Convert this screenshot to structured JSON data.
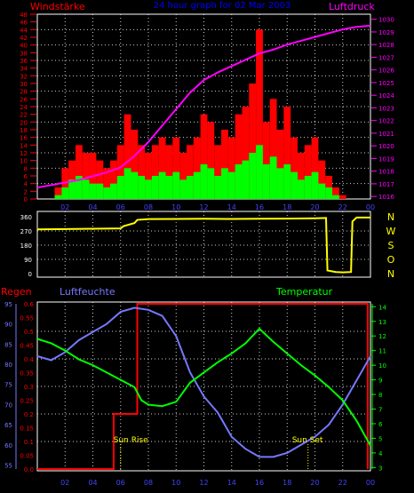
{
  "header": {
    "left_label": "Windstärke",
    "center_label": "24 hour graph for 02 Mar 2003",
    "right_label": "Luftdruck"
  },
  "bottom_header": {
    "regen_label": "Regen",
    "luftfeuchte_label": "Luftfeuchte",
    "temperatur_label": "Temperatur"
  },
  "annotations": {
    "sun_rise": "Sun Rise",
    "sun_set": "Sun Set"
  },
  "colors": {
    "wind_gust": "#ff0000",
    "wind_avg": "#00ff00",
    "pressure": "#ff00ff",
    "direction": "#ffff00",
    "rain": "#ff0000",
    "humidity": "#7777ff",
    "temperature": "#00ff00",
    "compass": "#ffff00",
    "frame": "#ffffff"
  },
  "chart_data": [
    {
      "type": "bar",
      "name": "wind_pressure",
      "x_ticks": [
        "02",
        "04",
        "06",
        "08",
        "10",
        "12",
        "14",
        "16",
        "18",
        "20",
        "22",
        "00"
      ],
      "xlim": [
        0,
        24
      ],
      "wind_yticks": [
        0,
        2,
        4,
        6,
        8,
        10,
        12,
        14,
        16,
        18,
        20,
        22,
        24,
        26,
        28,
        30,
        32,
        34,
        36,
        38,
        40,
        42,
        44,
        46,
        48
      ],
      "wind_ylim": [
        0,
        48
      ],
      "pressure_yticks": [
        1016,
        1017,
        1018,
        1019,
        1020,
        1021,
        1022,
        1023,
        1024,
        1025,
        1026,
        1027,
        1028,
        1029,
        1030
      ],
      "pressure_ylim": [
        1015.8,
        1030.4
      ],
      "wind_gust_series": [
        [
          1.5,
          3
        ],
        [
          2,
          8
        ],
        [
          2.5,
          10
        ],
        [
          3,
          14
        ],
        [
          3.5,
          12
        ],
        [
          4,
          12
        ],
        [
          4.5,
          10
        ],
        [
          5,
          8
        ],
        [
          5.5,
          10
        ],
        [
          6,
          14
        ],
        [
          6.5,
          22
        ],
        [
          7,
          18
        ],
        [
          7.5,
          14
        ],
        [
          8,
          12
        ],
        [
          8.5,
          14
        ],
        [
          9,
          16
        ],
        [
          9.5,
          14
        ],
        [
          10,
          16
        ],
        [
          10.5,
          12
        ],
        [
          11,
          14
        ],
        [
          11.5,
          16
        ],
        [
          12,
          22
        ],
        [
          12.5,
          20
        ],
        [
          13,
          14
        ],
        [
          13.5,
          18
        ],
        [
          14,
          16
        ],
        [
          14.5,
          22
        ],
        [
          15,
          24
        ],
        [
          15.5,
          30
        ],
        [
          16,
          44
        ],
        [
          16.5,
          20
        ],
        [
          17,
          26
        ],
        [
          17.5,
          18
        ],
        [
          18,
          24
        ],
        [
          18.5,
          16
        ],
        [
          19,
          12
        ],
        [
          19.5,
          14
        ],
        [
          20,
          16
        ],
        [
          20.5,
          10
        ],
        [
          21,
          6
        ],
        [
          21.5,
          3
        ],
        [
          22,
          1
        ]
      ],
      "wind_avg_series": [
        [
          1.5,
          1
        ],
        [
          2,
          3
        ],
        [
          2.5,
          5
        ],
        [
          3,
          6
        ],
        [
          3.5,
          5
        ],
        [
          4,
          4
        ],
        [
          4.5,
          4
        ],
        [
          5,
          3
        ],
        [
          5.5,
          4
        ],
        [
          6,
          6
        ],
        [
          6.5,
          8
        ],
        [
          7,
          7
        ],
        [
          7.5,
          6
        ],
        [
          8,
          5
        ],
        [
          8.5,
          6
        ],
        [
          9,
          7
        ],
        [
          9.5,
          6
        ],
        [
          10,
          7
        ],
        [
          10.5,
          5
        ],
        [
          11,
          6
        ],
        [
          11.5,
          7
        ],
        [
          12,
          9
        ],
        [
          12.5,
          8
        ],
        [
          13,
          6
        ],
        [
          13.5,
          8
        ],
        [
          14,
          7
        ],
        [
          14.5,
          9
        ],
        [
          15,
          10
        ],
        [
          15.5,
          12
        ],
        [
          16,
          14
        ],
        [
          16.5,
          9
        ],
        [
          17,
          11
        ],
        [
          17.5,
          8
        ],
        [
          18,
          9
        ],
        [
          18.5,
          7
        ],
        [
          19,
          5
        ],
        [
          19.5,
          6
        ],
        [
          20,
          7
        ],
        [
          20.5,
          4
        ],
        [
          21,
          3
        ],
        [
          21.5,
          1
        ],
        [
          22,
          0
        ]
      ],
      "pressure_series": [
        [
          0,
          1016.7
        ],
        [
          1,
          1016.9
        ],
        [
          2,
          1017.1
        ],
        [
          3,
          1017.3
        ],
        [
          4,
          1017.6
        ],
        [
          5,
          1017.9
        ],
        [
          6,
          1018.3
        ],
        [
          7,
          1019.2
        ],
        [
          8,
          1020.3
        ],
        [
          9,
          1021.6
        ],
        [
          10,
          1022.9
        ],
        [
          11,
          1024.2
        ],
        [
          12,
          1025.2
        ],
        [
          13,
          1025.8
        ],
        [
          14,
          1026.3
        ],
        [
          15,
          1026.8
        ],
        [
          16,
          1027.3
        ],
        [
          17,
          1027.6
        ],
        [
          18,
          1028.0
        ],
        [
          19,
          1028.3
        ],
        [
          20,
          1028.6
        ],
        [
          21,
          1028.9
        ],
        [
          22,
          1029.2
        ],
        [
          23,
          1029.4
        ],
        [
          24,
          1029.5
        ]
      ]
    },
    {
      "type": "line",
      "name": "wind_direction",
      "xlim": [
        0,
        24
      ],
      "yticks": [
        0,
        90,
        180,
        270,
        360
      ],
      "ylim": [
        0,
        360
      ],
      "compass_labels": [
        "N",
        "W",
        "S",
        "O",
        "N"
      ],
      "series": [
        [
          0,
          280
        ],
        [
          2,
          282
        ],
        [
          4,
          284
        ],
        [
          6,
          286
        ],
        [
          6.2,
          300
        ],
        [
          7,
          320
        ],
        [
          7.2,
          340
        ],
        [
          8,
          345
        ],
        [
          10,
          346
        ],
        [
          12,
          347
        ],
        [
          14,
          346
        ],
        [
          16,
          347
        ],
        [
          18,
          348
        ],
        [
          20,
          350
        ],
        [
          20.8,
          352
        ],
        [
          20.9,
          20
        ],
        [
          21.5,
          10
        ],
        [
          22,
          8
        ],
        [
          22.6,
          10
        ],
        [
          22.7,
          330
        ],
        [
          23,
          355
        ],
        [
          24,
          355
        ]
      ]
    },
    {
      "type": "line",
      "name": "rain_humidity_temperature",
      "x_ticks": [
        "02",
        "04",
        "06",
        "08",
        "10",
        "12",
        "14",
        "16",
        "18",
        "20",
        "22",
        "00"
      ],
      "xlim": [
        0,
        24
      ],
      "rain_yticks": [
        0,
        0.05,
        0.1,
        0.15,
        0.2,
        0.25,
        0.3,
        0.35,
        0.4,
        0.45,
        0.5,
        0.55,
        0.6
      ],
      "rain_ylim": [
        0,
        0.6
      ],
      "humidity_yticks": [
        55,
        60,
        65,
        70,
        75,
        80,
        85,
        90,
        95
      ],
      "humidity_ylim": [
        54,
        95
      ],
      "temperature_yticks": [
        3,
        4,
        5,
        6,
        7,
        8,
        9,
        10,
        11,
        12,
        13,
        14
      ],
      "temperature_ylim": [
        2.9,
        14.2
      ],
      "rain_series": [
        [
          0,
          0
        ],
        [
          5.5,
          0
        ],
        [
          5.5,
          0.2
        ],
        [
          7.2,
          0.2
        ],
        [
          7.2,
          0.6
        ],
        [
          23.8,
          0.6
        ],
        [
          23.8,
          0
        ]
      ],
      "humidity_series": [
        [
          0,
          82
        ],
        [
          1,
          81
        ],
        [
          2,
          83
        ],
        [
          3,
          86
        ],
        [
          4,
          88
        ],
        [
          5,
          90
        ],
        [
          6,
          93
        ],
        [
          7,
          94
        ],
        [
          8,
          93.5
        ],
        [
          9,
          92
        ],
        [
          10,
          87
        ],
        [
          11,
          78
        ],
        [
          12,
          72
        ],
        [
          13,
          68
        ],
        [
          14,
          62
        ],
        [
          15,
          59
        ],
        [
          16,
          57
        ],
        [
          17,
          57
        ],
        [
          18,
          58
        ],
        [
          19,
          60
        ],
        [
          20,
          62
        ],
        [
          21,
          65
        ],
        [
          22,
          70
        ],
        [
          23,
          76
        ],
        [
          24,
          82
        ]
      ],
      "temperature_series": [
        [
          0,
          11.8
        ],
        [
          1,
          11.5
        ],
        [
          2,
          11.0
        ],
        [
          3,
          10.4
        ],
        [
          4,
          10.0
        ],
        [
          5,
          9.5
        ],
        [
          6,
          9.0
        ],
        [
          7,
          8.5
        ],
        [
          7.5,
          7.6
        ],
        [
          8,
          7.3
        ],
        [
          9,
          7.2
        ],
        [
          10,
          7.5
        ],
        [
          11,
          8.8
        ],
        [
          12,
          9.5
        ],
        [
          13,
          10.2
        ],
        [
          14,
          10.8
        ],
        [
          15,
          11.5
        ],
        [
          16,
          12.5
        ],
        [
          17,
          11.6
        ],
        [
          18,
          10.8
        ],
        [
          19,
          10.0
        ],
        [
          20,
          9.3
        ],
        [
          21,
          8.5
        ],
        [
          22,
          7.6
        ],
        [
          23,
          6.2
        ],
        [
          24,
          4.5
        ]
      ],
      "sun_rise_hour": 6.0,
      "sun_set_hour": 19.5
    }
  ]
}
